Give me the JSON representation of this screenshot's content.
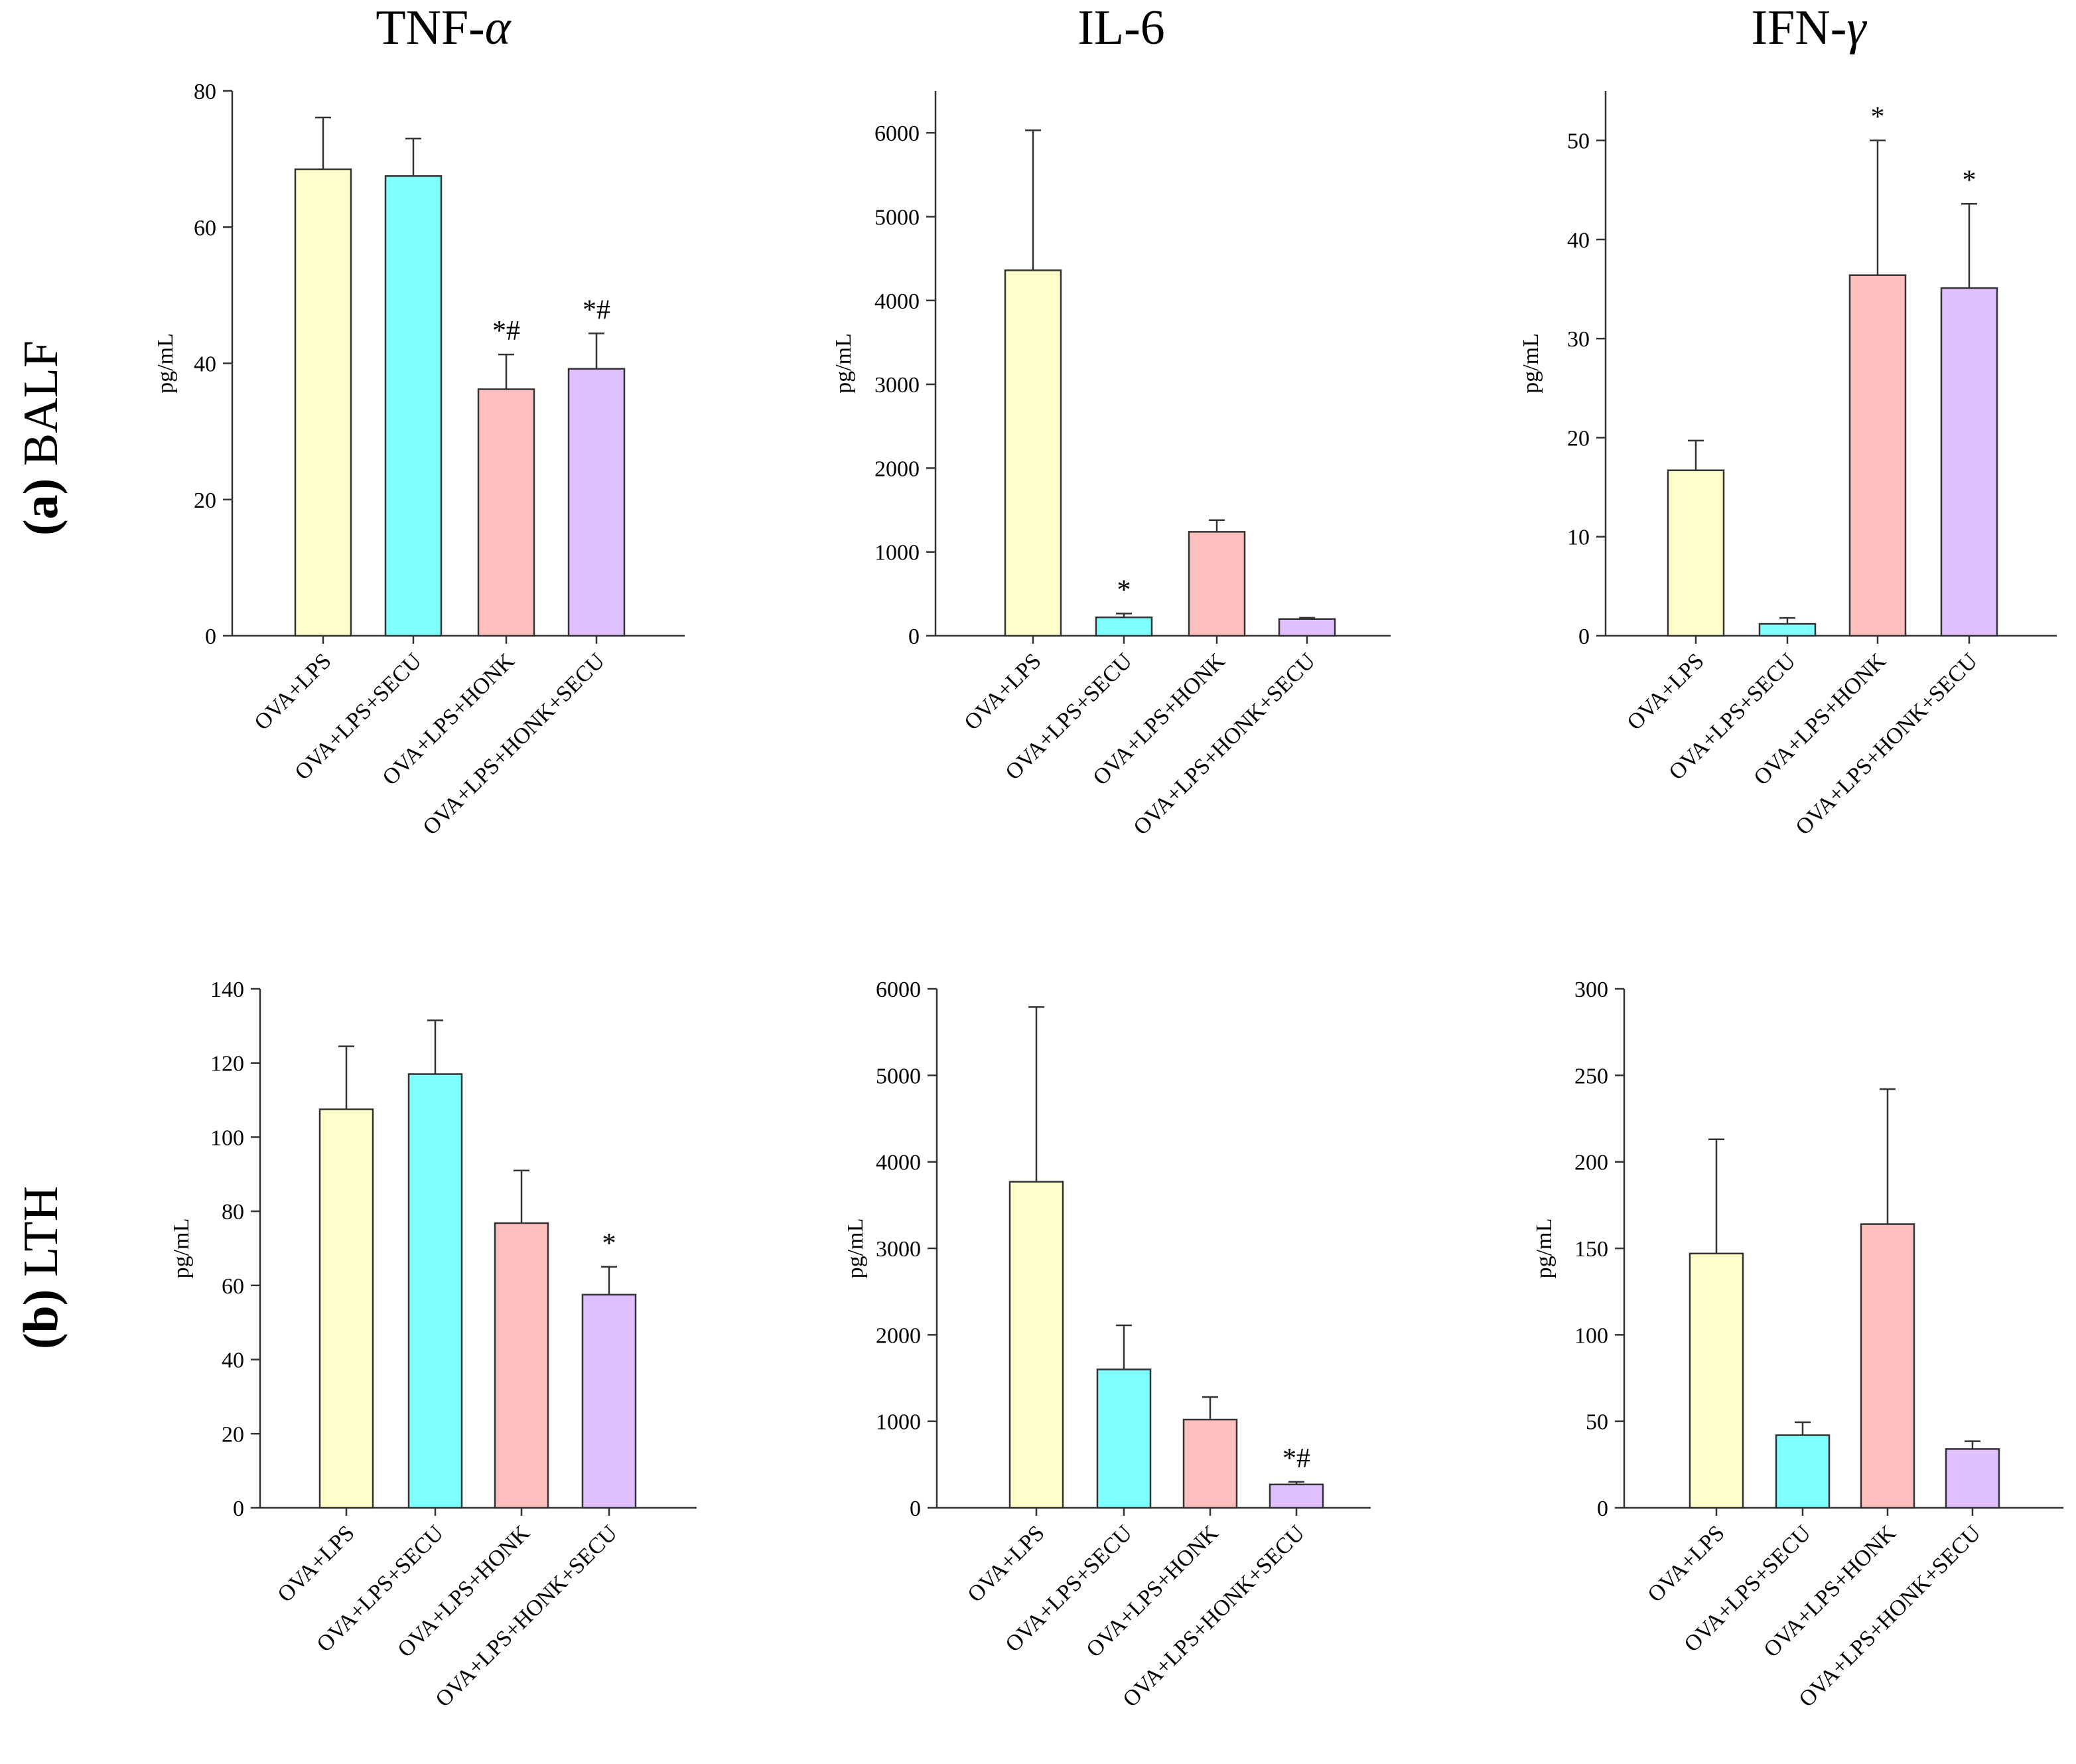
{
  "column_titles": [
    {
      "base": "TNF-",
      "greek": "α"
    },
    {
      "base": "IL-6",
      "greek": ""
    },
    {
      "base": "IFN-",
      "greek": "γ"
    }
  ],
  "row_labels": [
    {
      "tag": "(a)",
      "name": "BALF"
    },
    {
      "tag": "(b)",
      "name": "LTH"
    }
  ],
  "colors": {
    "OVA+LPS": "#ffffcc",
    "OVA+LPS+SECU": "#80ffff",
    "OVA+LPS+HONK": "#ffbfbf",
    "OVA+LPS+HONK+SECU": "#dfbfff",
    "stroke": "#333333"
  },
  "chart_data": [
    {
      "type": "bar",
      "panel": "BALF TNF-α",
      "title": "",
      "xlabel": "",
      "ylabel": "pg/mL",
      "categories": [
        "OVA+LPS",
        "OVA+LPS+SECU",
        "OVA+LPS+HONK",
        "OVA+LPS+HONK+SECU"
      ],
      "values": [
        68.5,
        67.5,
        36.2,
        39.2
      ],
      "errors": [
        7.6,
        5.5,
        5.1,
        5.2
      ],
      "annotations": [
        "",
        "",
        "*#",
        "*#"
      ],
      "ylim": [
        0,
        80
      ],
      "yticks": [
        0,
        20,
        40,
        60,
        80
      ]
    },
    {
      "type": "bar",
      "panel": "BALF IL-6",
      "title": "",
      "xlabel": "",
      "ylabel": "pg/mL",
      "categories": [
        "OVA+LPS",
        "OVA+LPS+SECU",
        "OVA+LPS+HONK",
        "OVA+LPS+HONK+SECU"
      ],
      "values": [
        4360,
        220,
        1240,
        200
      ],
      "errors": [
        1670,
        45,
        140,
        15
      ],
      "annotations": [
        "",
        "*",
        "",
        ""
      ],
      "ylim": [
        0,
        6500
      ],
      "yticks": [
        0,
        1000,
        2000,
        3000,
        4000,
        5000,
        6000
      ]
    },
    {
      "type": "bar",
      "panel": "BALF IFN-γ",
      "title": "",
      "xlabel": "",
      "ylabel": "pg/mL",
      "categories": [
        "OVA+LPS",
        "OVA+LPS+SECU",
        "OVA+LPS+HONK",
        "OVA+LPS+HONK+SECU"
      ],
      "values": [
        16.7,
        1.2,
        36.4,
        35.1
      ],
      "errors": [
        3.0,
        0.6,
        13.6,
        8.5
      ],
      "annotations": [
        "",
        "",
        "*",
        "*"
      ],
      "ylim": [
        0,
        55
      ],
      "yticks": [
        0,
        10,
        20,
        30,
        40,
        50
      ]
    },
    {
      "type": "bar",
      "panel": "LTH TNF-α",
      "title": "",
      "xlabel": "",
      "ylabel": "pg/mL",
      "categories": [
        "OVA+LPS",
        "OVA+LPS+SECU",
        "OVA+LPS+HONK",
        "OVA+LPS+HONK+SECU"
      ],
      "values": [
        107.5,
        117,
        76.8,
        57.5
      ],
      "errors": [
        17,
        14.5,
        14.2,
        7.5
      ],
      "annotations": [
        "",
        "",
        "",
        "*"
      ],
      "ylim": [
        0,
        140
      ],
      "yticks": [
        0,
        20,
        40,
        60,
        80,
        100,
        120,
        140
      ]
    },
    {
      "type": "bar",
      "panel": "LTH IL-6",
      "title": "",
      "xlabel": "",
      "ylabel": "pg/mL",
      "categories": [
        "OVA+LPS",
        "OVA+LPS+SECU",
        "OVA+LPS+HONK",
        "OVA+LPS+HONK+SECU"
      ],
      "values": [
        3770,
        1600,
        1020,
        270
      ],
      "errors": [
        2020,
        510,
        260,
        30
      ],
      "annotations": [
        "",
        "",
        "",
        "*#"
      ],
      "ylim": [
        0,
        6000
      ],
      "yticks": [
        0,
        1000,
        2000,
        3000,
        4000,
        5000,
        6000
      ]
    },
    {
      "type": "bar",
      "panel": "LTH IFN-γ",
      "title": "",
      "xlabel": "",
      "ylabel": "pg/mL",
      "categories": [
        "OVA+LPS",
        "OVA+LPS+SECU",
        "OVA+LPS+HONK",
        "OVA+LPS+HONK+SECU"
      ],
      "values": [
        147,
        42,
        164,
        34
      ],
      "errors": [
        66,
        7.5,
        78,
        4.5
      ],
      "annotations": [
        "",
        "",
        "",
        ""
      ],
      "ylim": [
        0,
        300
      ],
      "yticks": [
        0,
        50,
        100,
        150,
        200,
        250,
        300
      ]
    }
  ]
}
